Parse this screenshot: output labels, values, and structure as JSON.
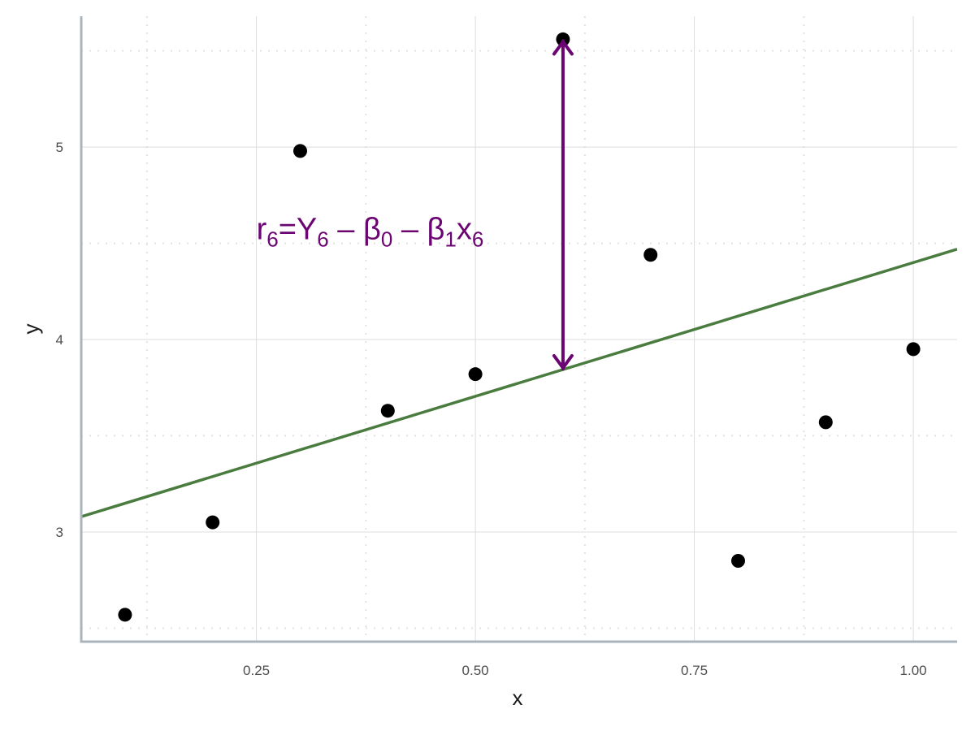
{
  "chart_data": {
    "type": "scatter",
    "title": "",
    "xlabel": "x",
    "ylabel": "y",
    "xlim": [
      0.05,
      1.05
    ],
    "ylim": [
      2.43,
      5.68
    ],
    "x_ticks": [
      0.25,
      0.5,
      0.75,
      1.0
    ],
    "x_tick_labels": [
      "0.25",
      "0.50",
      "0.75",
      "1.00"
    ],
    "x_minor_ticks": [
      0.125,
      0.375,
      0.625,
      0.875
    ],
    "y_ticks": [
      3,
      4,
      5
    ],
    "y_tick_labels": [
      "3",
      "4",
      "5"
    ],
    "y_minor_ticks": [
      2.5,
      3.5,
      4.5,
      5.5
    ],
    "grid": true,
    "points": {
      "x": [
        0.1,
        0.2,
        0.3,
        0.4,
        0.5,
        0.6,
        0.7,
        0.8,
        0.9,
        1.0
      ],
      "y": [
        2.57,
        3.05,
        4.98,
        3.63,
        3.82,
        5.56,
        4.44,
        2.85,
        3.57,
        3.95
      ],
      "color": "#000000"
    },
    "fit_line": {
      "intercept": 3.01,
      "slope": 1.39,
      "color": "#4a7c3f"
    },
    "residual_arrow": {
      "x": 0.6,
      "y_from": 3.84,
      "y_to": 5.56,
      "color": "#6a0572"
    },
    "annotation": {
      "segments": [
        {
          "text": "r",
          "style": "normal"
        },
        {
          "text": "6",
          "style": "sub"
        },
        {
          "text": "=Y",
          "style": "normal"
        },
        {
          "text": "6",
          "style": "sub"
        },
        {
          "text": " – β",
          "style": "normal"
        },
        {
          "text": "0",
          "style": "sub"
        },
        {
          "text": " – β",
          "style": "normal"
        },
        {
          "text": "1",
          "style": "sub"
        },
        {
          "text": "x",
          "style": "normal"
        },
        {
          "text": "6",
          "style": "sub"
        }
      ],
      "anchor_x": 0.25,
      "anchor_y": 4.58,
      "color": "#6a0572"
    },
    "colors": {
      "axis": "#a9b4bd",
      "grid_major": "#dcdcdc",
      "grid_minor": "#e2e2e2"
    }
  }
}
